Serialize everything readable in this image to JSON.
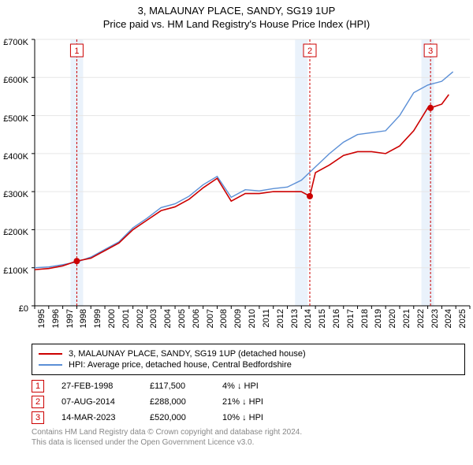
{
  "chart": {
    "title": "3, MALAUNAY PLACE, SANDY, SG19 1UP",
    "subtitle": "Price paid vs. HM Land Registry's House Price Index (HPI)",
    "background_color": "#ffffff",
    "plot_bg": "#ffffff",
    "grid_color": "#e6e6e6",
    "axis_color": "#000000",
    "title_fontsize": 13,
    "label_fontsize": 11,
    "x_axis": {
      "min": 1995,
      "max": 2026,
      "ticks": [
        1995,
        1996,
        1997,
        1998,
        1999,
        2000,
        2001,
        2002,
        2003,
        2004,
        2005,
        2006,
        2007,
        2008,
        2009,
        2010,
        2011,
        2012,
        2013,
        2014,
        2015,
        2016,
        2017,
        2018,
        2019,
        2020,
        2021,
        2022,
        2023,
        2024,
        2025,
        2026
      ]
    },
    "y_axis": {
      "min": 0,
      "max": 700000,
      "ticks": [
        0,
        100000,
        200000,
        300000,
        400000,
        500000,
        600000,
        700000
      ],
      "tick_labels": [
        "£0",
        "£100K",
        "£200K",
        "£300K",
        "£400K",
        "£500K",
        "£600K",
        "£700K"
      ]
    },
    "marker_bands": {
      "color": "#eaf2fb",
      "years": [
        1998,
        2014,
        2023
      ]
    },
    "marker_line_color": "#cc0000",
    "marker_line_dash": "3,2",
    "series": [
      {
        "name": "3, MALAUNAY PLACE, SANDY, SG19 1UP (detached house)",
        "color": "#cc0000",
        "width": 1.6,
        "points": [
          [
            1995,
            95000
          ],
          [
            1996,
            98000
          ],
          [
            1997,
            105000
          ],
          [
            1998,
            117500
          ],
          [
            1999,
            125000
          ],
          [
            2000,
            145000
          ],
          [
            2001,
            165000
          ],
          [
            2002,
            200000
          ],
          [
            2003,
            225000
          ],
          [
            2004,
            250000
          ],
          [
            2005,
            260000
          ],
          [
            2006,
            280000
          ],
          [
            2007,
            310000
          ],
          [
            2008,
            335000
          ],
          [
            2009,
            275000
          ],
          [
            2010,
            295000
          ],
          [
            2011,
            295000
          ],
          [
            2012,
            300000
          ],
          [
            2013,
            300000
          ],
          [
            2014,
            300000
          ],
          [
            2014.6,
            288000
          ],
          [
            2015,
            350000
          ],
          [
            2016,
            370000
          ],
          [
            2017,
            395000
          ],
          [
            2018,
            405000
          ],
          [
            2019,
            405000
          ],
          [
            2020,
            400000
          ],
          [
            2021,
            420000
          ],
          [
            2022,
            460000
          ],
          [
            2023,
            520000
          ],
          [
            2023.2,
            520000
          ],
          [
            2024,
            530000
          ],
          [
            2024.5,
            555000
          ]
        ]
      },
      {
        "name": "HPI: Average price, detached house, Central Bedfordshire",
        "color": "#5b8fd6",
        "width": 1.4,
        "points": [
          [
            1995,
            100000
          ],
          [
            1996,
            102000
          ],
          [
            1997,
            108000
          ],
          [
            1998,
            115000
          ],
          [
            1999,
            128000
          ],
          [
            2000,
            148000
          ],
          [
            2001,
            168000
          ],
          [
            2002,
            205000
          ],
          [
            2003,
            230000
          ],
          [
            2004,
            258000
          ],
          [
            2005,
            268000
          ],
          [
            2006,
            288000
          ],
          [
            2007,
            318000
          ],
          [
            2008,
            340000
          ],
          [
            2009,
            285000
          ],
          [
            2010,
            305000
          ],
          [
            2011,
            302000
          ],
          [
            2012,
            308000
          ],
          [
            2013,
            312000
          ],
          [
            2014,
            330000
          ],
          [
            2015,
            365000
          ],
          [
            2016,
            400000
          ],
          [
            2017,
            430000
          ],
          [
            2018,
            450000
          ],
          [
            2019,
            455000
          ],
          [
            2020,
            460000
          ],
          [
            2021,
            500000
          ],
          [
            2022,
            560000
          ],
          [
            2023,
            580000
          ],
          [
            2024,
            590000
          ],
          [
            2024.8,
            615000
          ]
        ]
      }
    ],
    "sale_points": {
      "color": "#cc0000",
      "radius": 4,
      "points": [
        [
          1998,
          117500
        ],
        [
          2014.6,
          288000
        ],
        [
          2023.2,
          520000
        ]
      ]
    },
    "marker_badges": [
      {
        "n": "1",
        "year": 1998
      },
      {
        "n": "2",
        "year": 2014.6
      },
      {
        "n": "3",
        "year": 2023.2
      }
    ]
  },
  "legend": {
    "items": [
      {
        "color": "#cc0000",
        "label": "3, MALAUNAY PLACE, SANDY, SG19 1UP (detached house)"
      },
      {
        "color": "#5b8fd6",
        "label": "HPI: Average price, detached house, Central Bedfordshire"
      }
    ]
  },
  "marker_table": {
    "border_color": "#cc0000",
    "rows": [
      {
        "n": "1",
        "date": "27-FEB-1998",
        "price": "£117,500",
        "pct": "4% ↓ HPI"
      },
      {
        "n": "2",
        "date": "07-AUG-2014",
        "price": "£288,000",
        "pct": "21% ↓ HPI"
      },
      {
        "n": "3",
        "date": "14-MAR-2023",
        "price": "£520,000",
        "pct": "10% ↓ HPI"
      }
    ]
  },
  "footer": {
    "line1": "Contains HM Land Registry data © Crown copyright and database right 2024.",
    "line2": "This data is licensed under the Open Government Licence v3.0."
  }
}
